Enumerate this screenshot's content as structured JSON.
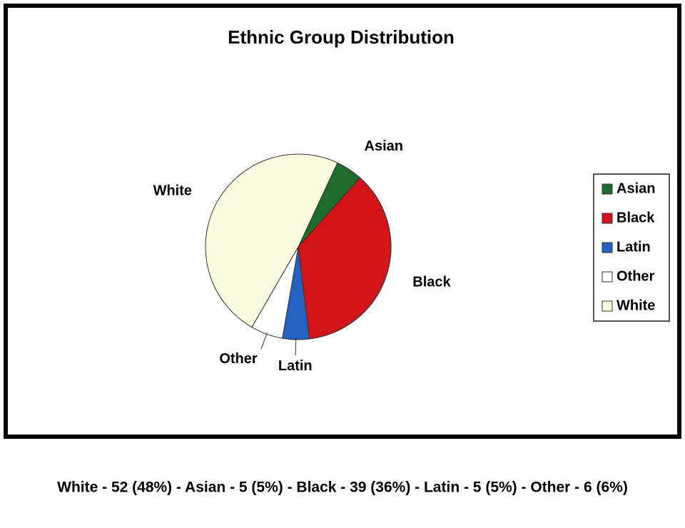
{
  "chart_data": {
    "type": "pie",
    "title": "Ethnic Group Distribution",
    "categories": [
      "Asian",
      "Black",
      "Latin",
      "Other",
      "White"
    ],
    "values": [
      5,
      39,
      5,
      6,
      52
    ],
    "colors": [
      "#1f6b2c",
      "#d0141a",
      "#2462c2",
      "#ffffff",
      "#fbfbe0"
    ],
    "legend": "right",
    "caption": "White - 52 (48%) - Asian - 5 (5%) - Black - 39 (36%) - Latin - 5 (5%) - Other - 6 (6%)"
  }
}
